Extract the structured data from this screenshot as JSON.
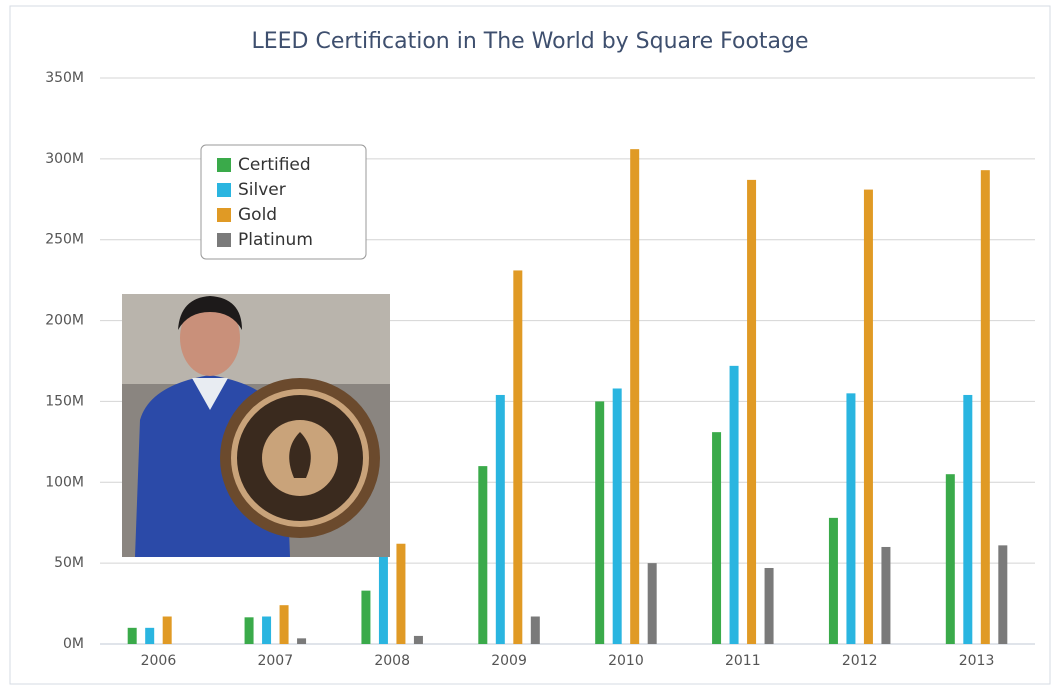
{
  "chart_data": {
    "type": "bar",
    "title": "LEED Certification in The World by Square Footage",
    "categories": [
      "2006",
      "2007",
      "2008",
      "2009",
      "2010",
      "2011",
      "2012",
      "2013"
    ],
    "series": [
      {
        "name": "Certified",
        "color": "#3aaa4a",
        "values": [
          10,
          16.5,
          33,
          110,
          150,
          131,
          78,
          105
        ]
      },
      {
        "name": "Silver",
        "color": "#2ab5e0",
        "values": [
          10,
          17,
          58,
          154,
          158,
          172,
          155,
          154
        ]
      },
      {
        "name": "Gold",
        "color": "#e09a25",
        "values": [
          17,
          24,
          62,
          231,
          306,
          287,
          281,
          293
        ]
      },
      {
        "name": "Platinum",
        "color": "#7a7a7a",
        "values": [
          0,
          3.5,
          5,
          17,
          50,
          47,
          60,
          61
        ]
      }
    ],
    "ylim": [
      0,
      350
    ],
    "yticks": [
      {
        "value": 0,
        "label": "0M"
      },
      {
        "value": 50,
        "label": "50M"
      },
      {
        "value": 100,
        "label": "100M"
      },
      {
        "value": 150,
        "label": "150M"
      },
      {
        "value": 200,
        "label": "200M"
      },
      {
        "value": 250,
        "label": "250M"
      },
      {
        "value": 300,
        "label": "300M"
      },
      {
        "value": 350,
        "label": "350M"
      }
    ],
    "grid": true,
    "legend": "top-left"
  }
}
